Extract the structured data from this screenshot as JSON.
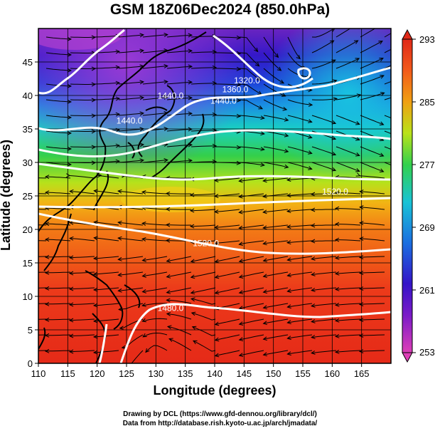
{
  "title": "GSM 18Z06Dec2024 (850.0hPa)",
  "xlabel": "Longitude (degrees)",
  "ylabel": "Latitude  (degrees)",
  "credit_line1": "Drawing by DCL (https://www.gfd-dennou.org/library/dcl/)",
  "credit_line2": "Data from http://database.rish.kyoto-u.ac.jp/arch/jmadata/",
  "map": {
    "lon_range": [
      110,
      170
    ],
    "lat_range": [
      0,
      50
    ],
    "lon_ticks": [
      110,
      115,
      120,
      125,
      130,
      135,
      140,
      145,
      150,
      155,
      160,
      165
    ],
    "lat_ticks": [
      0,
      5,
      10,
      15,
      20,
      25,
      30,
      35,
      40,
      45
    ],
    "grid": true
  },
  "colorbar": {
    "range": [
      253,
      293
    ],
    "labels": [
      "293",
      "285",
      "277",
      "269",
      "261",
      "253"
    ],
    "colors": [
      "#dd3fb7",
      "#3414c8",
      "#1a6ee0",
      "#19c3d6",
      "#33d14d",
      "#b9e21a",
      "#f0a012",
      "#f25a1a",
      "#e02818"
    ]
  },
  "contour_labels": [
    {
      "text": "1440.0",
      "lon": 132.5,
      "lat": 39.5
    },
    {
      "text": "1440.0",
      "lon": 125.5,
      "lat": 35.8
    },
    {
      "text": "1440.0",
      "lon": 141.5,
      "lat": 38.8
    },
    {
      "text": "1360.0",
      "lon": 143.5,
      "lat": 40.5
    },
    {
      "text": "1320.0",
      "lon": 145.5,
      "lat": 41.8
    },
    {
      "text": "1520.0",
      "lon": 138.5,
      "lat": 17.5
    },
    {
      "text": "1520.0",
      "lon": 160.5,
      "lat": 25.2
    },
    {
      "text": "1480.0",
      "lon": 132.5,
      "lat": 7.8
    }
  ]
}
